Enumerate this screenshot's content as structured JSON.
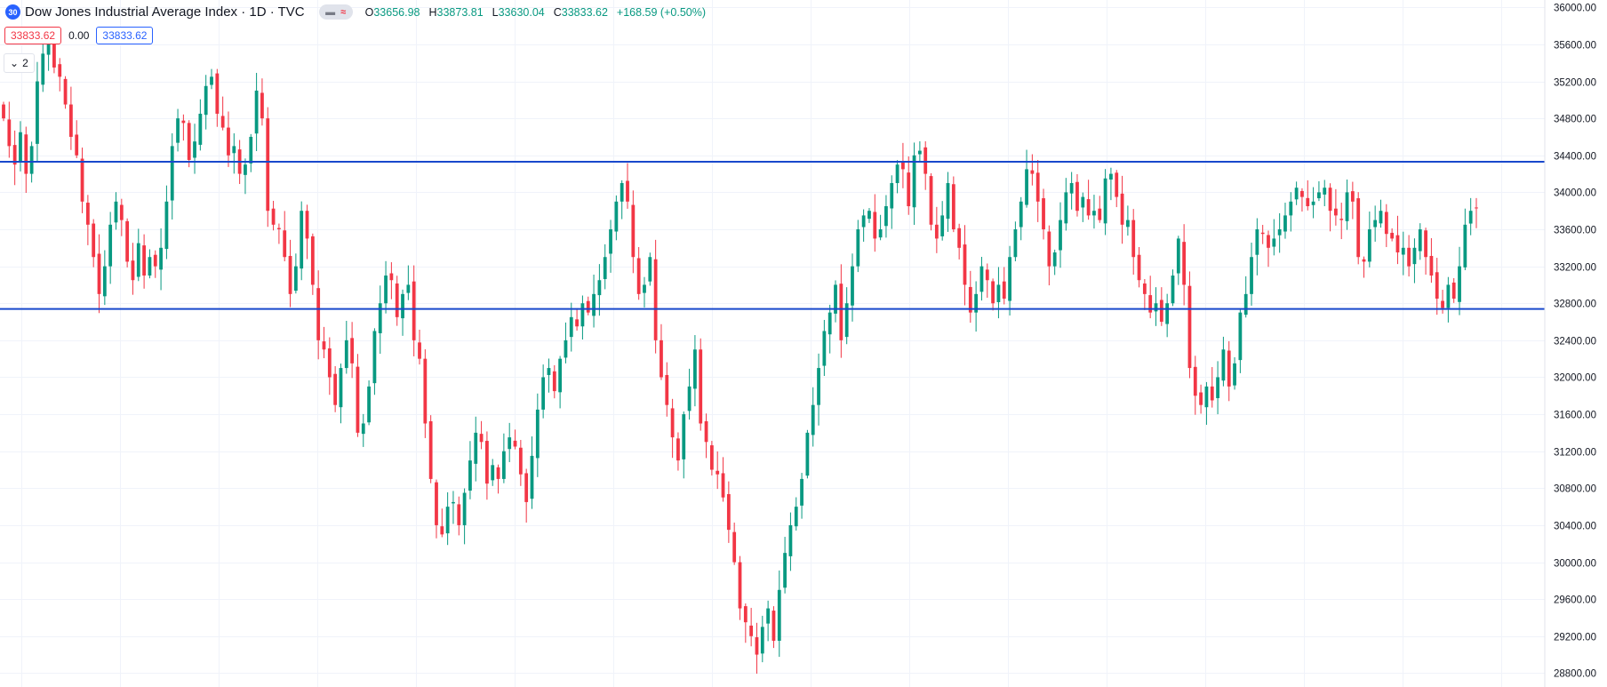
{
  "header": {
    "badge": "30",
    "title": "Dow Jones Industrial Average Index · 1D · TVC",
    "ohlc": {
      "o_label": "O",
      "o": "33656.98",
      "h_label": "H",
      "h": "33873.81",
      "l_label": "L",
      "l": "33630.04",
      "c_label": "C",
      "c": "33833.62",
      "change": "+168.59 (+0.50%)"
    },
    "sell_price": "33833.62",
    "spread": "0.00",
    "buy_price": "33833.62",
    "indicators_count": "2"
  },
  "colors": {
    "up": "#089981",
    "down": "#f23645",
    "lines": "#1848cc",
    "grid": "#f0f3fa"
  },
  "chart_data": {
    "type": "candlestick",
    "title": "Dow Jones Industrial Average Index · 1D · TVC",
    "ylim": [
      28650,
      36080
    ],
    "y_ticks": [
      28800,
      29200,
      29600,
      30000,
      30400,
      30800,
      31200,
      31600,
      32000,
      32400,
      32800,
      33200,
      33600,
      34000,
      34400,
      34800,
      35200,
      35600,
      36000
    ],
    "y_tick_labels": [
      "28800.00",
      "29200.00",
      "29600.00",
      "30000.00",
      "30400.00",
      "30800.00",
      "31200.00",
      "31600.00",
      "32000.00",
      "32400.00",
      "32800.00",
      "33200.00",
      "33600.00",
      "34000.00",
      "34400.00",
      "34800.00",
      "35200.00",
      "35600.00",
      "36000.00"
    ],
    "horizontal_lines": [
      {
        "value": 34331.21,
        "label": "34331.21"
      },
      {
        "value": 32739.04,
        "label": "32739.04"
      }
    ],
    "grid": true,
    "closes": [
      34800,
      34500,
      34300,
      34650,
      34200,
      34500,
      35200,
      35500,
      35650,
      35350,
      35250,
      34950,
      34600,
      34400,
      33900,
      33650,
      33300,
      32900,
      33200,
      33650,
      33900,
      33700,
      33250,
      33050,
      33450,
      33100,
      33300,
      33200,
      33400,
      33900,
      34500,
      34800,
      34750,
      34350,
      34550,
      34850,
      35150,
      35250,
      34850,
      34700,
      34400,
      34500,
      34200,
      34300,
      34600,
      35100,
      34800,
      33800,
      33650,
      33600,
      33300,
      32900,
      33200,
      33800,
      33500,
      33000,
      32400,
      32300,
      32000,
      31700,
      32100,
      32400,
      32150,
      31400,
      31500,
      31900,
      32500,
      32800,
      33100,
      33050,
      32650,
      32900,
      33000,
      32400,
      32200,
      31500,
      30900,
      30400,
      30300,
      30600,
      30650,
      30400,
      30750,
      31100,
      31400,
      31300,
      30850,
      31050,
      30900,
      31200,
      31350,
      31250,
      30950,
      30650,
      31150,
      31650,
      32000,
      32100,
      31850,
      32200,
      32400,
      32650,
      32550,
      32800,
      32700,
      32900,
      33050,
      33300,
      33600,
      33900,
      34100,
      33900,
      33300,
      32900,
      33000,
      33300,
      32400,
      32000,
      31700,
      31350,
      31100,
      31600,
      31900,
      32300,
      31500,
      31300,
      31000,
      30950,
      30700,
      30350,
      30000,
      29500,
      29350,
      29200,
      29000,
      29300,
      29500,
      29150,
      29700,
      30100,
      30400,
      30600,
      30900,
      31400,
      31700,
      32100,
      32500,
      32700,
      33000,
      32400,
      32800,
      33200,
      33600,
      33750,
      33800,
      33500,
      33600,
      33850,
      34100,
      34300,
      34250,
      33850,
      34400,
      34450,
      34200,
      33650,
      33500,
      33750,
      34100,
      33600,
      33400,
      33000,
      32700,
      32900,
      33200,
      33050,
      32800,
      33000,
      32850,
      33300,
      33600,
      33900,
      34250,
      34200,
      33900,
      33600,
      33200,
      33350,
      33700,
      34000,
      34100,
      33800,
      33950,
      33750,
      33800,
      33700,
      34150,
      34200,
      33950,
      33650,
      33700,
      33300,
      33050,
      32900,
      32700,
      32800,
      32600,
      32800,
      33100,
      33500,
      33000,
      32100,
      31800,
      31700,
      31900,
      31750,
      32000,
      32300,
      31900,
      32150,
      32700,
      32900,
      33300,
      33600,
      33550,
      33400,
      33500,
      33600,
      33750,
      33900,
      34050,
      33950,
      33850,
      33900,
      34000,
      34050,
      33800,
      33750,
      33700,
      34000,
      33900,
      33300,
      33250,
      33600,
      33700,
      33800,
      33550,
      33500,
      33350,
      33400,
      33200,
      33400,
      33600,
      33300,
      33100,
      32850,
      32750,
      33000,
      32850,
      33200,
      33650,
      33800,
      33833.62
    ]
  }
}
